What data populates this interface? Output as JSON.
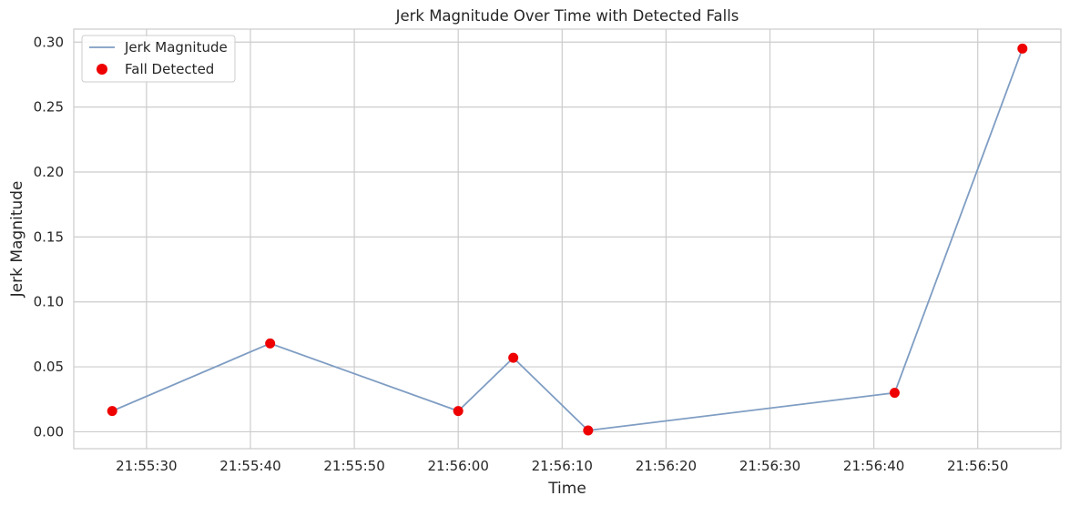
{
  "chart_data": {
    "type": "line",
    "title": "Jerk Magnitude Over Time with Detected Falls",
    "xlabel": "Time",
    "ylabel": "Jerk Magnitude",
    "x_unit": "HH:MM:SS",
    "xlim": [
      "21:55:23",
      "21:56:58"
    ],
    "ylim": [
      -0.013,
      0.31
    ],
    "x_ticks": [
      "21:55:30",
      "21:55:40",
      "21:55:50",
      "21:56:00",
      "21:56:10",
      "21:56:20",
      "21:56:30",
      "21:56:40",
      "21:56:50"
    ],
    "y_ticks": [
      "0.00",
      "0.05",
      "0.10",
      "0.15",
      "0.20",
      "0.25",
      "0.30"
    ],
    "grid": true,
    "legend_position": "top-left",
    "series": [
      {
        "name": "Jerk Magnitude",
        "kind": "line",
        "color": "#7f9dc3",
        "points": [
          {
            "x": "21:55:26.7",
            "y": 0.016
          },
          {
            "x": "21:55:41.9",
            "y": 0.068
          },
          {
            "x": "21:56:00.0",
            "y": 0.016
          },
          {
            "x": "21:56:05.3",
            "y": 0.057
          },
          {
            "x": "21:56:12.5",
            "y": 0.001
          },
          {
            "x": "21:56:42.0",
            "y": 0.03
          },
          {
            "x": "21:56:54.3",
            "y": 0.295
          }
        ]
      },
      {
        "name": "Fall Detected",
        "kind": "scatter",
        "color": "#ee0000",
        "points": [
          {
            "x": "21:55:26.7",
            "y": 0.016
          },
          {
            "x": "21:55:41.9",
            "y": 0.068
          },
          {
            "x": "21:56:00.0",
            "y": 0.016
          },
          {
            "x": "21:56:05.3",
            "y": 0.057
          },
          {
            "x": "21:56:12.5",
            "y": 0.001
          },
          {
            "x": "21:56:42.0",
            "y": 0.03
          },
          {
            "x": "21:56:54.3",
            "y": 0.295
          }
        ]
      }
    ]
  }
}
